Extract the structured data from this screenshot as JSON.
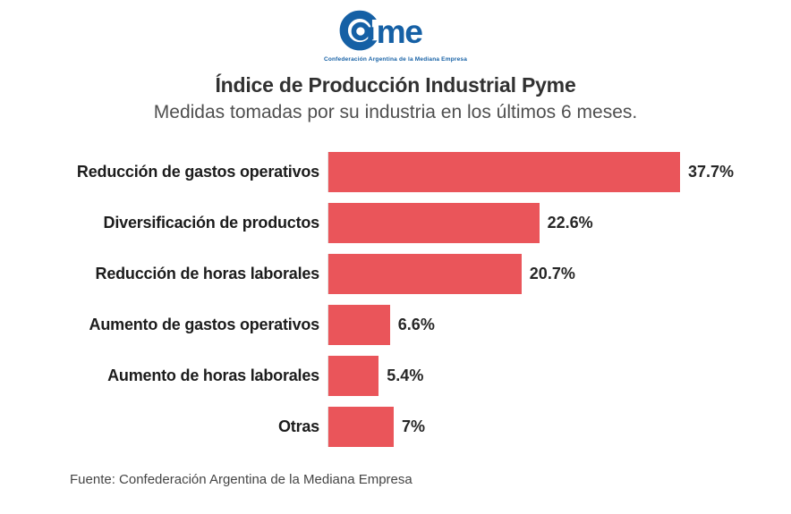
{
  "logo": {
    "name": "Came",
    "wordmark_text": "me",
    "tagline": "Confederación Argentina de la Mediana Empresa",
    "color": "#1560A5"
  },
  "header": {
    "title": "Índice de Producción Industrial Pyme",
    "subtitle": "Medidas tomadas por su industria en los últimos 6 meses."
  },
  "chart_data": {
    "type": "bar",
    "orientation": "horizontal",
    "title": "Índice de Producción Industrial Pyme",
    "subtitle": "Medidas tomadas por su industria en los últimos 6 meses.",
    "categories": [
      "Reducción de gastos operativos",
      "Diversificación de productos",
      "Reducción de horas laborales",
      "Aumento de gastos operativos",
      "Aumento de horas laborales",
      "Otras"
    ],
    "values": [
      37.7,
      22.6,
      20.7,
      6.6,
      5.4,
      7
    ],
    "value_labels": [
      "37.7%",
      "22.6%",
      "20.7%",
      "6.6%",
      "5.4%",
      "7%"
    ],
    "unit": "%",
    "xlim": [
      0,
      40
    ],
    "grid": false,
    "legend": false,
    "bar_color": "#EA555A",
    "label_position": "left",
    "value_label_position": "right-of-bar"
  },
  "footer": {
    "source": "Fuente: Confederación Argentina de la Mediana Empresa"
  }
}
